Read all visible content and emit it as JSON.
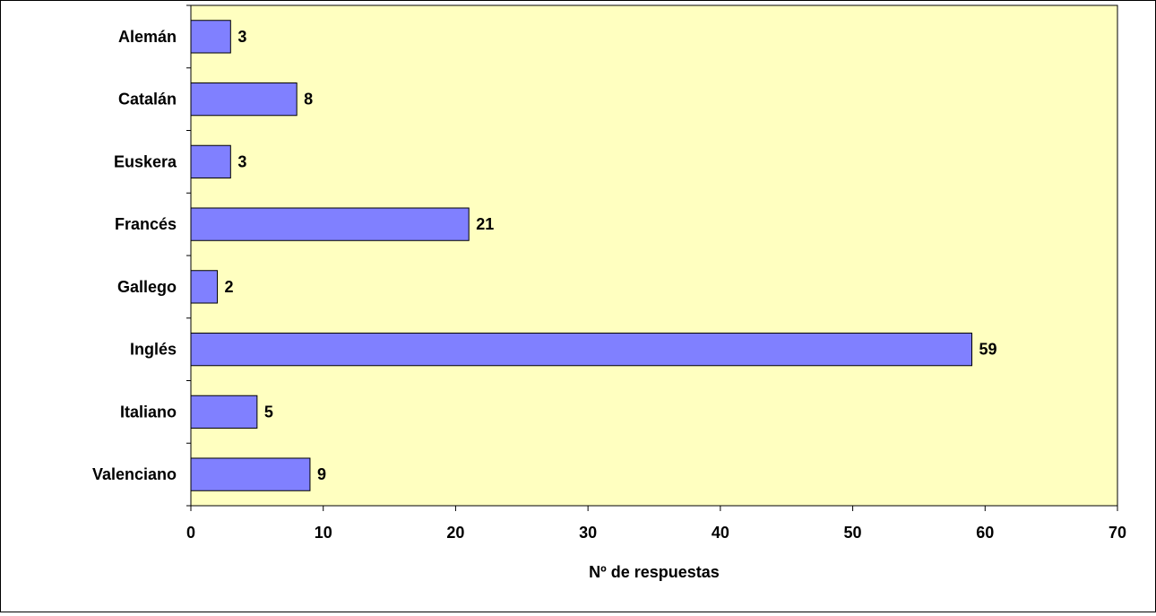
{
  "chart_data": {
    "type": "bar",
    "orientation": "horizontal",
    "categories": [
      "Alemán",
      "Catalán",
      "Euskera",
      "Francés",
      "Gallego",
      "Inglés",
      "Italiano",
      "Valenciano"
    ],
    "values": [
      3,
      8,
      3,
      21,
      2,
      59,
      5,
      9
    ],
    "xlabel": "Nº de respuestas",
    "ylabel": "",
    "title": "",
    "xlim": [
      0,
      70
    ],
    "xticks": [
      0,
      10,
      20,
      30,
      40,
      50,
      60,
      70
    ],
    "grid": false,
    "legend": "none",
    "data_labels": true,
    "colors": {
      "plot_background": "#ffffc0",
      "bar_fill": "#8080ff",
      "bar_stroke": "#000000"
    }
  }
}
